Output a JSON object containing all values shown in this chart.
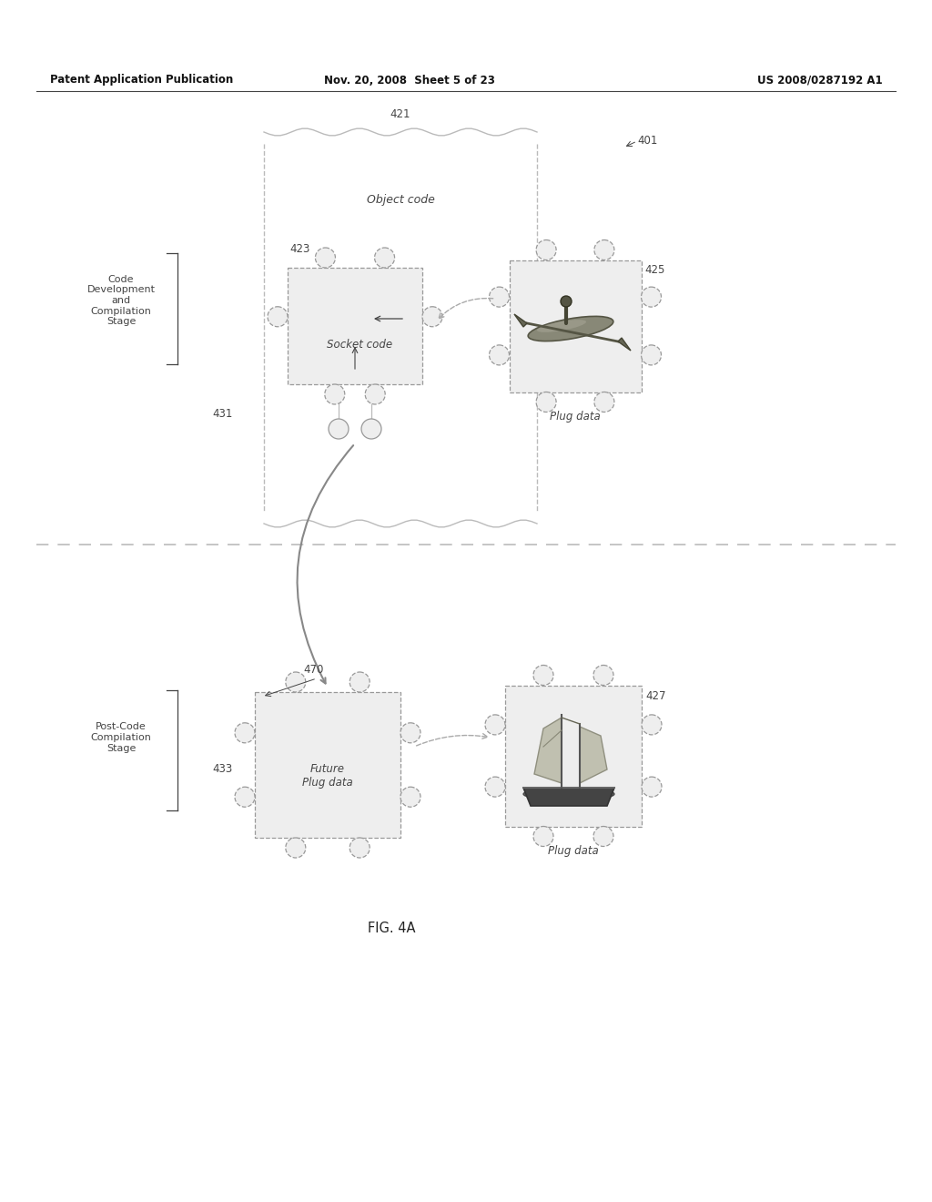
{
  "bg_color": "#ffffff",
  "header_text": "Patent Application Publication",
  "header_date": "Nov. 20, 2008  Sheet 5 of 23",
  "header_patent": "US 2008/0287192 A1",
  "fig_label": "FIG. 4A",
  "label_421": "421",
  "label_423": "423",
  "label_425": "425",
  "label_427": "427",
  "label_431": "431",
  "label_433": "433",
  "label_470": "470",
  "label_401": "401",
  "text_object_code": "Object code",
  "text_socket_code": "Socket code",
  "text_plug_data_1": "Plug data",
  "text_plug_data_2": "Plug data",
  "text_future_plug": "Future\nPlug data",
  "text_code_dev": "Code\nDevelopment\nand\nCompilation\nStage",
  "text_post_code": "Post-Code\nCompilation\nStage",
  "line_color": "#999999",
  "dashed_line_color": "#bbbbbb",
  "text_color": "#444444",
  "gray_light": "#d8d8d8",
  "gray_mid": "#aaaaaa"
}
